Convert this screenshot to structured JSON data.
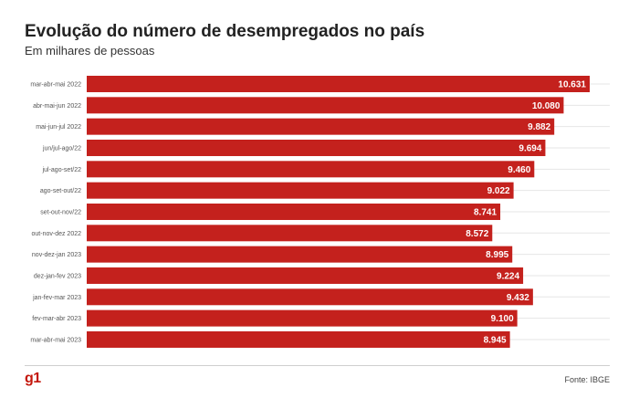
{
  "header": {
    "title": "Evolução do número de desempregados no país",
    "subtitle": "Em milhares de pessoas"
  },
  "footer": {
    "logo": "g1",
    "source": "Fonte: IBGE"
  },
  "colors": {
    "bar": "#c4211d",
    "value_text": "#ffffff",
    "logo": "#c4170c"
  },
  "chart_data": {
    "type": "bar",
    "orientation": "horizontal",
    "title": "Evolução do número de desempregados no país",
    "subtitle": "Em milhares de pessoas",
    "xlabel": "",
    "ylabel": "",
    "grid": true,
    "xlim": [
      0,
      11000
    ],
    "categories": [
      "mar-abr-mai 2022",
      "abr-mai-jun 2022",
      "mai-jun-jul 2022",
      "jun/jul-ago/22",
      "jul-ago-set/22",
      "ago-set-out/22",
      "set-out-nov/22",
      "out-nov-dez 2022",
      "nov-dez-jan 2023",
      "dez-jan-fev 2023",
      "jan-fev-mar 2023",
      "fev-mar-abr 2023",
      "mar-abr-mai 2023"
    ],
    "values": [
      10631,
      10080,
      9882,
      9694,
      9460,
      9022,
      8741,
      8572,
      8995,
      9224,
      9432,
      9100,
      8945
    ],
    "value_labels": [
      "10.631",
      "10.080",
      "9.882",
      "9.694",
      "9.460",
      "9.022",
      "8.741",
      "8.572",
      "8.995",
      "9.224",
      "9.432",
      "9.100",
      "8.945"
    ]
  }
}
